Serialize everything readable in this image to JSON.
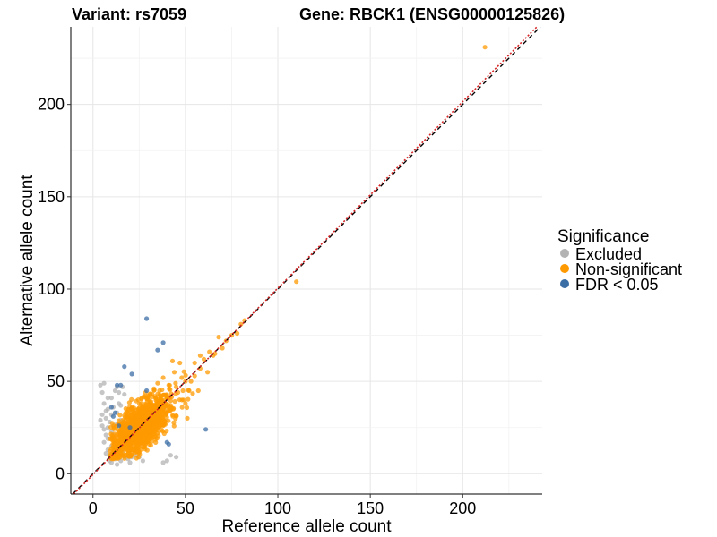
{
  "title_variant": "Variant: rs7059",
  "title_gene": "Gene: RBCK1 (ENSG00000125826)",
  "chart_data": {
    "type": "scatter",
    "xlabel": "Reference allele count",
    "ylabel": "Alternative allele count",
    "xlim": [
      -12,
      243
    ],
    "ylim": [
      -11,
      242
    ],
    "xticks": [
      0,
      50,
      100,
      150,
      200
    ],
    "yticks": [
      0,
      50,
      100,
      150,
      200
    ],
    "xtick_labels": [
      "0",
      "50",
      "100",
      "150",
      "200"
    ],
    "ytick_labels": [
      "0",
      "50",
      "100",
      "150",
      "200"
    ],
    "reference_lines": [
      {
        "type": "identity",
        "style": "dashed",
        "color": "#000000"
      },
      {
        "type": "fit",
        "style": "dotted",
        "color": "#d62728",
        "slope": 1.01,
        "intercept": -0.5
      }
    ],
    "legend": {
      "title": "Significance",
      "placement": "right",
      "entries": [
        {
          "label": "Excluded",
          "color": "#b3b3b3"
        },
        {
          "label": "Non-significant",
          "color": "#ff9900"
        },
        {
          "label": "FDR < 0.05",
          "color": "#3c6ea6"
        }
      ]
    },
    "series": [
      {
        "name": "Excluded",
        "color": "#b3b3b3",
        "points": [
          [
            4,
            48
          ],
          [
            6,
            49
          ],
          [
            5,
            44
          ],
          [
            8,
            41
          ],
          [
            6,
            38
          ],
          [
            8,
            35
          ],
          [
            5,
            32
          ],
          [
            7,
            30
          ],
          [
            9,
            28
          ],
          [
            8,
            25
          ],
          [
            10,
            23
          ],
          [
            7,
            21
          ],
          [
            9,
            19
          ],
          [
            6,
            17
          ],
          [
            10,
            15
          ],
          [
            8,
            13
          ],
          [
            11,
            11
          ],
          [
            9,
            10
          ],
          [
            12,
            8
          ],
          [
            10,
            6
          ],
          [
            13,
            5
          ],
          [
            15,
            7
          ],
          [
            12,
            16
          ],
          [
            11,
            21
          ],
          [
            13,
            27
          ],
          [
            10,
            32
          ],
          [
            14,
            38
          ],
          [
            12,
            45
          ],
          [
            16,
            47
          ],
          [
            15,
            37
          ],
          [
            13,
            33
          ],
          [
            11,
            26
          ],
          [
            14,
            18
          ],
          [
            16,
            12
          ],
          [
            17,
            9
          ],
          [
            19,
            8
          ],
          [
            21,
            9
          ],
          [
            23,
            10
          ],
          [
            25,
            9
          ],
          [
            20,
            6
          ],
          [
            27,
            7
          ],
          [
            38,
            6
          ],
          [
            40,
            7
          ],
          [
            42,
            10
          ],
          [
            45,
            9
          ],
          [
            5,
            26
          ],
          [
            7,
            11
          ],
          [
            9,
            7
          ],
          [
            14,
            44
          ],
          [
            17,
            43
          ],
          [
            8,
            19
          ],
          [
            6,
            24
          ],
          [
            11,
            36
          ],
          [
            15,
            29
          ],
          [
            18,
            14
          ],
          [
            22,
            13
          ],
          [
            10,
            41
          ],
          [
            13,
            47
          ],
          [
            7,
            34
          ],
          [
            4,
            29
          ]
        ]
      },
      {
        "name": "Non-significant",
        "color": "#ff9900",
        "points": [
          [
            212,
            231
          ],
          [
            110,
            104
          ],
          [
            80,
            81
          ],
          [
            75,
            75
          ],
          [
            72,
            72
          ],
          [
            68,
            74
          ],
          [
            66,
            65
          ],
          [
            70,
            68
          ],
          [
            63,
            66
          ],
          [
            78,
            76
          ],
          [
            82,
            83
          ],
          [
            60,
            62
          ],
          [
            58,
            57
          ],
          [
            62,
            55
          ],
          [
            55,
            60
          ],
          [
            48,
            52
          ],
          [
            50,
            50
          ],
          [
            45,
            47
          ],
          [
            40,
            42
          ],
          [
            52,
            45
          ],
          [
            38,
            52
          ],
          [
            55,
            53
          ],
          [
            65,
            64
          ],
          [
            47,
            60
          ],
          [
            44,
            55
          ],
          [
            41,
            48
          ],
          [
            36,
            45
          ],
          [
            58,
            64
          ],
          [
            53,
            50
          ],
          [
            49,
            40
          ],
          [
            35,
            49
          ],
          [
            33,
            46
          ],
          [
            31,
            43
          ],
          [
            42,
            37
          ],
          [
            57,
            45
          ],
          [
            51,
            30
          ],
          [
            50,
            38
          ],
          [
            46,
            44
          ],
          [
            29,
            41
          ],
          [
            26,
            38
          ],
          [
            43,
            61
          ],
          [
            30,
            31
          ],
          [
            32,
            25
          ],
          [
            22,
            19
          ],
          [
            18,
            18
          ],
          [
            24,
            27
          ],
          [
            28,
            33
          ]
        ],
        "cluster": {
          "center": [
            26,
            26
          ],
          "count": 1300,
          "spread_x": 8,
          "spread_y": 8,
          "correlation": 0.65
        }
      },
      {
        "name": "FDR < 0.05",
        "color": "#3c6ea6",
        "points": [
          [
            29,
            84
          ],
          [
            38,
            71
          ],
          [
            17,
            58
          ],
          [
            21,
            54
          ],
          [
            13,
            48
          ],
          [
            15,
            48
          ],
          [
            10,
            36
          ],
          [
            12,
            33
          ],
          [
            20,
            25
          ],
          [
            11,
            31
          ],
          [
            14,
            26
          ],
          [
            61,
            24
          ],
          [
            40,
            17
          ],
          [
            41,
            16
          ],
          [
            29,
            45
          ],
          [
            35,
            67
          ]
        ]
      }
    ]
  }
}
